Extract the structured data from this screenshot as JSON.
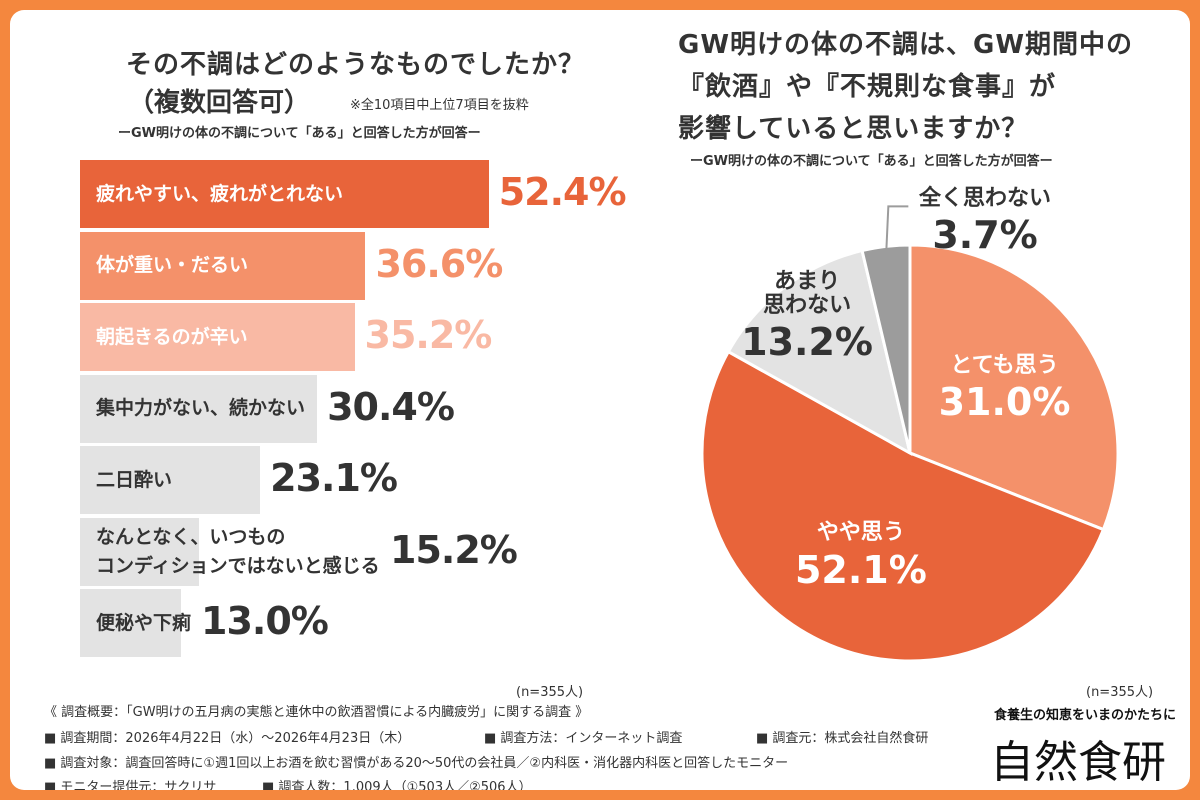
{
  "left_chart": {
    "title_line1": "その不調はどのようなものでしたか？",
    "title_line2": "（複数回答可）",
    "note": "※全10項目中上位7項目を抜粋",
    "subtitle": "ーGW明けの体の不調について「ある」と回答した方が回答ー",
    "n": "(n=355人)"
  },
  "right_chart": {
    "title_line1": "GW明けの体の不調は、GW期間中の",
    "title_line2": "『飲酒』や『不規則な食事』が",
    "title_line3": "影響していると思いますか？",
    "subtitle": "ーGW明けの体の不調について「ある」と回答した方が回答ー",
    "n": "(n=355人)"
  },
  "chart_data": [
    {
      "type": "bar",
      "orientation": "horizontal",
      "categories": [
        "疲れやすい、疲れがとれない",
        "体が重い・だるい",
        "朝起きるのが辛い",
        "集中力がない、続かない",
        "二日酔い",
        "なんとなく、いつものコンディションではないと感じる",
        "便秘や下痢"
      ],
      "label_lines": [
        [
          "疲れやすい、疲れがとれない"
        ],
        [
          "体が重い・だるい"
        ],
        [
          "朝起きるのが辛い"
        ],
        [
          "集中力がない、続かない"
        ],
        [
          "二日酔い"
        ],
        [
          "なんとなく、いつもの",
          "コンディションではないと感じる"
        ],
        [
          "便秘や下痢"
        ]
      ],
      "values": [
        52.4,
        36.6,
        35.2,
        30.4,
        23.1,
        15.2,
        13.0
      ],
      "value_labels": [
        "52.4%",
        "36.6%",
        "35.2%",
        "30.4%",
        "23.1%",
        "15.2%",
        "13.0%"
      ],
      "bar_colors": [
        "#e8643a",
        "#f4916a",
        "#f9b9a4",
        "#e3e3e3",
        "#e3e3e3",
        "#e3e3e3",
        "#e3e3e3"
      ],
      "label_colors": [
        "#ffffff",
        "#ffffff",
        "#ffffff",
        "#333333",
        "#333333",
        "#333333",
        "#333333"
      ],
      "value_colors": [
        "#e8643a",
        "#f4916a",
        "#f9b9a4",
        "#333333",
        "#333333",
        "#333333",
        "#333333"
      ],
      "title": "その不調はどのようなものでしたか？（複数回答可）",
      "xlim": [
        0,
        60
      ]
    },
    {
      "type": "pie",
      "labels": [
        "とても思う",
        "やや思う",
        "あまり思わない",
        "全く思わない"
      ],
      "label_lines": [
        [
          "とても思う"
        ],
        [
          "やや思う"
        ],
        [
          "あまり",
          "思わない"
        ],
        [
          "全く思わない"
        ]
      ],
      "values": [
        31.0,
        52.1,
        13.2,
        3.7
      ],
      "value_labels": [
        "31.0%",
        "52.1%",
        "13.2%",
        "3.7%"
      ],
      "colors": [
        "#f4916a",
        "#e8643a",
        "#e3e3e3",
        "#9c9c9c"
      ],
      "start": "12 o'clock, clockwise",
      "title": "GW明けの体の不調は、GW期間中の『飲酒』や『不規則な食事』が影響していると思いますか？"
    }
  ],
  "footer": {
    "overview": "《 調査概要：「GW明けの五月病の実態と連休中の飲酒習慣による内臓疲労」に関する調査 》",
    "period": "■ 調査期間：2026年4月22日（水）～2026年4月23日（木）",
    "method": "■ 調査方法：インターネット調査",
    "org": "■ 調査元：株式会社自然食研",
    "target": "■ 調査対象：調査回答時に①週1回以上お酒を飲む習慣がある20～50代の会社員／②内科医・消化器内科医と回答したモニター",
    "monitor": "■ モニター提供元：サクリサ",
    "count": "■ 調査人数：1,009人（①503人／②506人）"
  },
  "brand": {
    "tagline": "食養生の知恵をいまのかたちに",
    "logo": "自然食研"
  }
}
